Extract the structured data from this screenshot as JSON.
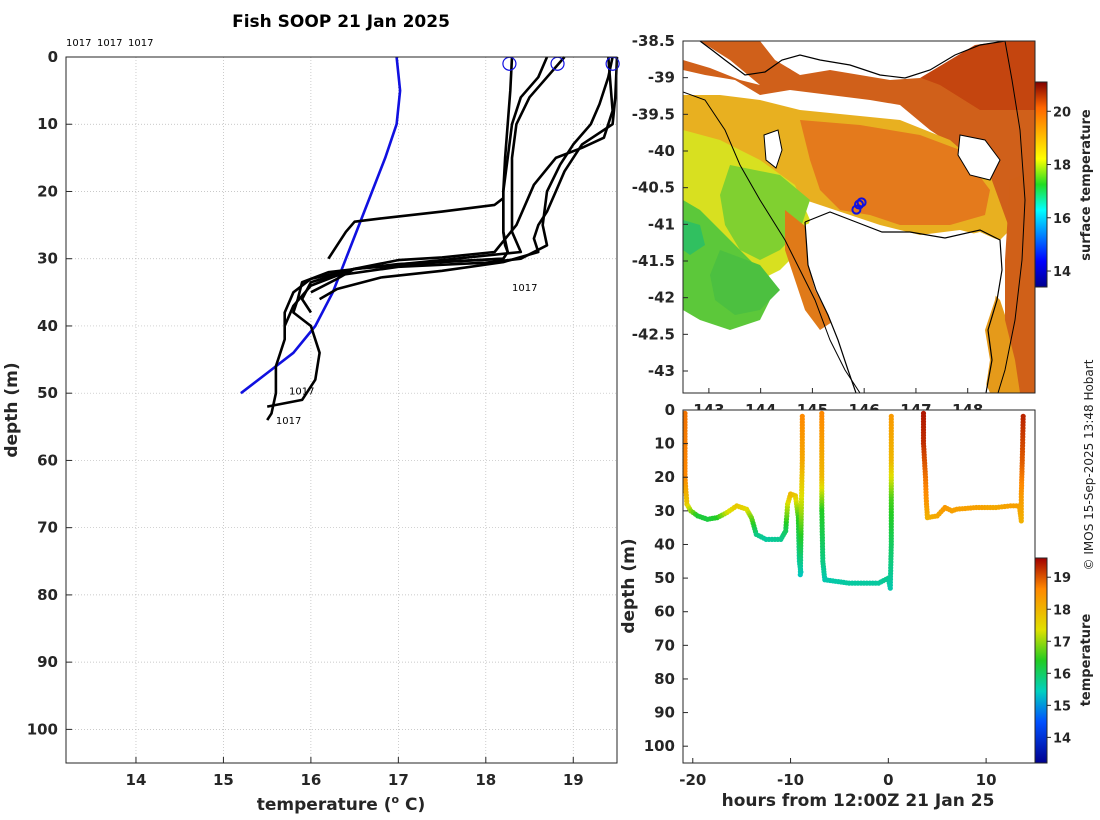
{
  "title": "Fish SOOP 21 Jan 2025",
  "copyright": "© IMOS 15-Sep-2025 13:48 Hobart",
  "profile_ids_top": [
    "1017",
    "1017",
    "1017"
  ],
  "colors": {
    "profile": "#000000",
    "climatology": "#1010e0",
    "grid": "#b8b8b8",
    "land": "#ffffff",
    "coast": "#000000"
  },
  "chart_data": [
    {
      "type": "line",
      "name": "temperature-depth-profiles",
      "xlabel": "temperature (°C)",
      "xlabel_base": "temperature (",
      "xlabel_sup": "o",
      "xlabel_end": " C)",
      "ylabel": "depth (m)",
      "xlim": [
        13.2,
        19.5
      ],
      "ylim": [
        105,
        0
      ],
      "xticks": [
        14,
        15,
        16,
        17,
        18,
        19
      ],
      "yticks": [
        0,
        10,
        20,
        30,
        40,
        50,
        60,
        70,
        80,
        90,
        100
      ],
      "grid": true,
      "profile_labels": [
        {
          "text": "1017",
          "x": 18.3,
          "y": 34.2
        },
        {
          "text": "1017",
          "x": 15.75,
          "y": 49.6
        },
        {
          "text": "1017",
          "x": 15.6,
          "y": 54.0
        }
      ],
      "surface_markers": [
        {
          "x": 18.27,
          "y": 1
        },
        {
          "x": 18.82,
          "y": 1
        },
        {
          "x": 19.45,
          "y": 1
        }
      ],
      "series": [
        {
          "name": "climatology",
          "color": "#1010e0",
          "x": [
            16.98,
            17.02,
            16.98,
            16.85,
            16.7,
            16.55,
            16.4,
            16.25,
            16.05,
            15.8,
            15.5,
            15.2
          ],
          "y": [
            0,
            5,
            10,
            15,
            20,
            25,
            30,
            35,
            40,
            44,
            47,
            50
          ]
        },
        {
          "name": "profile-1",
          "color": "#000000",
          "x": [
            18.3,
            18.28,
            18.25,
            18.22,
            18.2,
            18.2,
            18.22,
            18.25,
            18.2,
            17.5,
            16.5,
            16.0,
            15.8,
            15.7,
            15.7,
            15.6,
            15.6,
            15.55,
            15.5
          ],
          "y": [
            0,
            5,
            10,
            15,
            20,
            26,
            28,
            29,
            30,
            30.5,
            31.5,
            33,
            35,
            38,
            42,
            46,
            50,
            53,
            54
          ]
        },
        {
          "name": "profile-2",
          "color": "#000000",
          "x": [
            18.7,
            18.6,
            18.4,
            18.3,
            18.25,
            18.2,
            18.2,
            18.25,
            18.2,
            17.0,
            16.2,
            15.9,
            15.85,
            15.8,
            16.0,
            16.1,
            16.05,
            15.9,
            15.5
          ],
          "y": [
            0,
            3,
            6,
            10,
            15,
            20,
            26,
            29,
            30,
            30.8,
            32,
            33.5,
            36,
            38,
            40,
            44,
            48,
            51,
            52
          ]
        },
        {
          "name": "profile-3",
          "color": "#000000",
          "x": [
            19.45,
            19.4,
            19.3,
            19.2,
            19.0,
            18.85,
            18.7,
            18.65,
            18.7,
            18.4,
            18.0,
            17.0,
            16.3,
            16.0,
            15.8,
            15.7
          ],
          "y": [
            0,
            3,
            7,
            10,
            13,
            16,
            20,
            25,
            28,
            30,
            30.6,
            31.2,
            32.5,
            34,
            37,
            40
          ]
        },
        {
          "name": "profile-4",
          "color": "#000000",
          "x": [
            18.9,
            18.7,
            18.5,
            18.35,
            18.3,
            18.3,
            18.3,
            18.4,
            17.5,
            16.5,
            16.0,
            15.9,
            16.0
          ],
          "y": [
            0,
            3,
            6,
            10,
            15,
            20,
            26,
            29,
            30.2,
            31.5,
            33.5,
            36,
            38
          ]
        },
        {
          "name": "profile-5",
          "color": "#000000",
          "x": [
            19.5,
            19.48,
            19.45,
            19.1,
            18.9,
            18.8,
            18.7,
            18.6,
            18.55,
            18.6,
            18.2,
            17.5,
            16.8,
            16.3,
            16.1
          ],
          "y": [
            0,
            6,
            10,
            13,
            17,
            20,
            23,
            25,
            27,
            29,
            30.5,
            31.8,
            32.8,
            34.5,
            36
          ]
        },
        {
          "name": "profile-6",
          "color": "#000000",
          "x": [
            19.4,
            19.45,
            19.35,
            19.1,
            18.8,
            18.55,
            18.35,
            18.1,
            17.5,
            17.0,
            16.5,
            16.3,
            16.0
          ],
          "y": [
            0,
            8,
            12,
            13.5,
            15,
            19,
            25,
            29,
            29.8,
            30.2,
            31.5,
            33,
            35
          ]
        },
        {
          "name": "profile-7",
          "color": "#000000",
          "x": [
            18.2,
            18.1,
            17.5,
            16.8,
            16.5,
            16.4,
            16.3,
            16.2
          ],
          "y": [
            21,
            22,
            23,
            24,
            24.5,
            26,
            28,
            30
          ]
        }
      ]
    },
    {
      "type": "heatmap",
      "name": "surface-temperature-map",
      "xlim": [
        142.5,
        149.3
      ],
      "ylim": [
        -43.3,
        -38.5
      ],
      "xticks": [
        143,
        144,
        145,
        146,
        147,
        148
      ],
      "xtick_labels": [
        "143",
        "144",
        "145",
        "146",
        "147",
        "148"
      ],
      "yticks": [
        -38.5,
        -39,
        -39.5,
        -40,
        -40.5,
        -41,
        -41.5,
        -42,
        -42.5,
        -43
      ],
      "ytick_labels": [
        "-38.5",
        "-39",
        "-39.5",
        "-40",
        "-40.5",
        "-41",
        "-41.5",
        "-42",
        "-42.5",
        "-43"
      ],
      "colorbar_label": "surface temperature",
      "colorbar_range": [
        13.4,
        21.1
      ],
      "colorbar_ticks": [
        14,
        16,
        18,
        20
      ],
      "colorbar_tick_labels": [
        "14",
        "16",
        "18",
        "20"
      ],
      "track_points": [
        {
          "lon": 145.9,
          "lat": -40.73
        },
        {
          "lon": 145.85,
          "lat": -40.8
        },
        {
          "lon": 145.95,
          "lat": -40.7
        }
      ]
    },
    {
      "type": "scatter",
      "name": "depth-time-section",
      "xlabel": "hours from 12:00Z 21 Jan 25",
      "ylabel": "depth (m)",
      "xlim": [
        -21,
        15
      ],
      "ylim": [
        105,
        0
      ],
      "xticks": [
        -20,
        -10,
        0,
        10
      ],
      "xtick_labels": [
        "-20",
        "-10",
        "0",
        "10"
      ],
      "yticks": [
        0,
        10,
        20,
        30,
        40,
        50,
        60,
        70,
        80,
        90,
        100
      ],
      "ytick_labels": [
        "0",
        "10",
        "20",
        "30",
        "40",
        "50",
        "60",
        "70",
        "80",
        "90",
        "100"
      ],
      "colorbar_label": "temperature",
      "colorbar_range": [
        13.2,
        19.6
      ],
      "colorbar_ticks": [
        14,
        15,
        16,
        17,
        18,
        19
      ],
      "colorbar_tick_labels": [
        "14",
        "15",
        "16",
        "17",
        "18",
        "19"
      ],
      "tracks": [
        {
          "pts": [
            [
              -20.8,
              1,
              18.6
            ],
            [
              -20.8,
              20,
              18.4
            ],
            [
              -20.6,
              28,
              17.6
            ],
            [
              -20.2,
              30,
              16.9
            ],
            [
              -19.5,
              31.5,
              16.3
            ],
            [
              -18.5,
              32.5,
              16.2
            ],
            [
              -17.5,
              32,
              16.4
            ],
            [
              -16.5,
              30.5,
              17.2
            ],
            [
              -15.5,
              28.5,
              17.6
            ],
            [
              -14.5,
              29.5,
              17.4
            ],
            [
              -14,
              32,
              16.8
            ],
            [
              -13.5,
              37,
              15.8
            ],
            [
              -12.5,
              38.5,
              15.6
            ],
            [
              -11,
              38.5,
              15.7
            ],
            [
              -10.5,
              36,
              16.0
            ],
            [
              -10.3,
              28,
              17.2
            ],
            [
              -10,
              25,
              17.8
            ],
            [
              -9.5,
              25.5,
              17.6
            ],
            [
              -9.2,
              32,
              16.5
            ],
            [
              -9.1,
              45,
              15.6
            ],
            [
              -8.9,
              49,
              15.4
            ]
          ],
          "step": 0.5
        },
        {
          "pts": [
            [
              -9.0,
              49,
              15.4
            ],
            [
              -8.9,
              30,
              17.0
            ],
            [
              -8.8,
              15,
              18.0
            ],
            [
              -8.8,
              1,
              18.4
            ]
          ],
          "step": 0.8
        },
        {
          "pts": [
            [
              -6.8,
              1,
              18.4
            ],
            [
              -6.8,
              20,
              17.8
            ],
            [
              -6.8,
              30,
              16.4
            ],
            [
              -6.7,
              45,
              15.8
            ],
            [
              -6.5,
              50.5,
              15.5
            ],
            [
              -4,
              51.5,
              15.6
            ],
            [
              -1,
              51.5,
              15.6
            ],
            [
              0,
              50,
              15.7
            ],
            [
              0.2,
              53,
              15.5
            ],
            [
              0.3,
              40,
              16.0
            ],
            [
              0.3,
              26,
              16.6
            ],
            [
              0.3,
              15,
              17.8
            ],
            [
              0.3,
              1,
              18.2
            ]
          ],
          "step": 0.5
        },
        {
          "pts": [
            [
              3.6,
              1,
              19.4
            ],
            [
              3.6,
              10,
              19.2
            ],
            [
              3.8,
              20,
              18.6
            ],
            [
              3.9,
              28,
              18.2
            ],
            [
              4.0,
              32,
              17.9
            ],
            [
              5,
              31.5,
              18.0
            ],
            [
              5.8,
              29,
              18.2
            ],
            [
              6.5,
              30,
              18.1
            ],
            [
              7,
              29.5,
              18.1
            ],
            [
              9,
              29,
              18.1
            ],
            [
              11,
              29,
              18.0
            ],
            [
              12.5,
              28.5,
              18.1
            ],
            [
              13.4,
              28.5,
              18.1
            ],
            [
              13.6,
              33,
              17.9
            ],
            [
              13.6,
              25,
              18.2
            ],
            [
              13.7,
              15,
              18.8
            ],
            [
              13.8,
              1,
              19.3
            ]
          ],
          "step": 0.5
        }
      ]
    }
  ]
}
